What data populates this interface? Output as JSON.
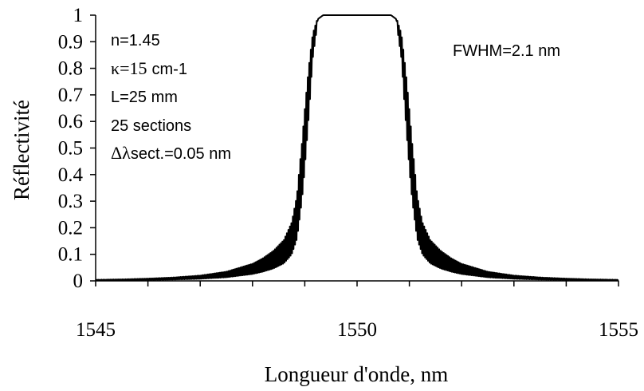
{
  "chart_data": {
    "type": "line",
    "title": "",
    "xlabel": "Longueur d'onde, nm",
    "ylabel": "Réflectivité",
    "xlim": [
      1545,
      1555
    ],
    "ylim": [
      0,
      1
    ],
    "x_ticks": [
      "1545",
      "1550",
      "1555"
    ],
    "y_ticks": [
      "0",
      "0.1",
      "0.2",
      "0.3",
      "0.4",
      "0.5",
      "0.6",
      "0.7",
      "0.8",
      "0.9",
      "1"
    ],
    "grid": false,
    "legend": "none",
    "line_color": "#000000",
    "annotations_left": {
      "n": "n=1.45",
      "kappa_symbol": "κ=15",
      "kappa_unit": "cm-1",
      "length": "L=25 mm",
      "sections": "25 sections",
      "delta_symbol": "Δλ",
      "delta_text": "sect.=0.05 nm"
    },
    "annotation_right": "FWHM=2.1 nm",
    "series": [
      {
        "name": "",
        "points": [
          [
            1545.0,
            0.003
          ],
          [
            1545.5,
            0.004
          ],
          [
            1546.0,
            0.006
          ],
          [
            1546.5,
            0.009
          ],
          [
            1547.0,
            0.014
          ],
          [
            1547.5,
            0.024
          ],
          [
            1548.0,
            0.045
          ],
          [
            1548.2,
            0.06
          ],
          [
            1548.4,
            0.08
          ],
          [
            1548.6,
            0.11
          ],
          [
            1548.75,
            0.16
          ],
          [
            1548.85,
            0.24
          ],
          [
            1548.95,
            0.42
          ],
          [
            1549.05,
            0.65
          ],
          [
            1549.15,
            0.88
          ],
          [
            1549.25,
            0.985
          ],
          [
            1549.35,
            1.0
          ],
          [
            1550.0,
            1.0
          ],
          [
            1550.65,
            1.0
          ],
          [
            1550.75,
            0.985
          ],
          [
            1550.85,
            0.88
          ],
          [
            1550.95,
            0.65
          ],
          [
            1551.05,
            0.42
          ],
          [
            1551.15,
            0.24
          ],
          [
            1551.25,
            0.16
          ],
          [
            1551.4,
            0.11
          ],
          [
            1551.6,
            0.08
          ],
          [
            1551.8,
            0.06
          ],
          [
            1552.0,
            0.045
          ],
          [
            1552.5,
            0.024
          ],
          [
            1553.0,
            0.014
          ],
          [
            1553.5,
            0.009
          ],
          [
            1554.0,
            0.006
          ],
          [
            1554.5,
            0.004
          ],
          [
            1555.0,
            0.003
          ]
        ]
      }
    ]
  }
}
